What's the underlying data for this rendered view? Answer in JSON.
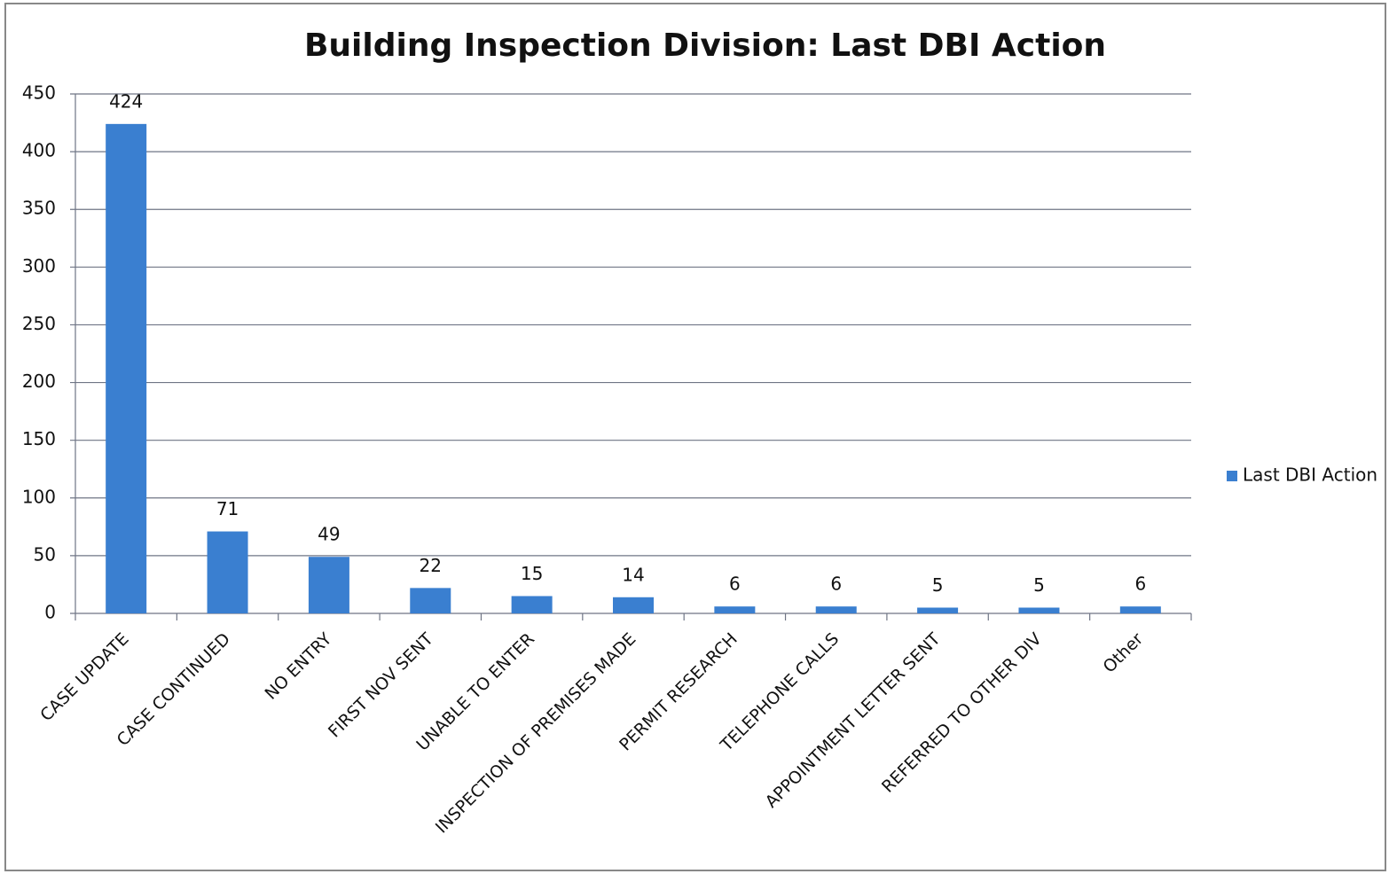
{
  "chart_data": {
    "type": "bar",
    "title": "Building Inspection Division: Last DBI Action",
    "categories": [
      "CASE UPDATE",
      "CASE CONTINUED",
      "NO ENTRY",
      "FIRST NOV SENT",
      "UNABLE TO ENTER",
      "INSPECTION OF PREMISES MADE",
      "PERMIT RESEARCH",
      "TELEPHONE CALLS",
      "APPOINTMENT LETTER SENT",
      "REFERRED TO OTHER DIV",
      "Other"
    ],
    "series": [
      {
        "name": "Last DBI Action",
        "color": "#3a7fd0",
        "values": [
          424,
          71,
          49,
          22,
          15,
          14,
          6,
          6,
          5,
          5,
          6
        ]
      }
    ],
    "ylim": [
      0,
      450
    ],
    "yticks": [
      0,
      50,
      100,
      150,
      200,
      250,
      300,
      350,
      400,
      450
    ],
    "grid": true,
    "legend": "right"
  }
}
